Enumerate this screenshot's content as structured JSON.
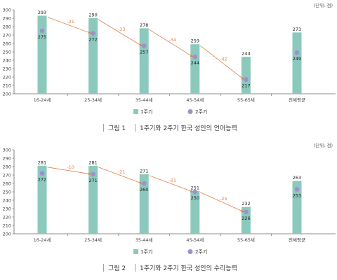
{
  "charts": [
    {
      "caption_number": "그림 1",
      "caption_title": "1주기와 2주기 한국 성인의 언어능력"
    },
    {
      "caption_number": "그림 2",
      "caption_title": "1주기와 2주기 한국 성인의 수리능력"
    }
  ],
  "chart_data": [
    {
      "type": "bar",
      "unit_label": "(단위: 점)",
      "categories": [
        "16-24세",
        "25-34세",
        "35-44세",
        "45-54세",
        "55-65세",
        "전체평균"
      ],
      "series": [
        {
          "name": "1주기",
          "type": "bar",
          "values": [
            293,
            290,
            278,
            259,
            244,
            273
          ],
          "color": "#8cc9bd"
        },
        {
          "name": "2주기",
          "type": "scatter",
          "values": [
            275,
            272,
            257,
            244,
            217,
            249
          ],
          "color": "#9f8fcf"
        }
      ],
      "differences": [
        "-21",
        "-33",
        "-34",
        "-42"
      ],
      "ylim": [
        200,
        300
      ],
      "yticks": [
        200,
        210,
        220,
        230,
        240,
        250,
        260,
        270,
        280,
        290,
        300
      ],
      "grid": false,
      "legend": "bottom-center",
      "arrow_color": "#e0804a"
    },
    {
      "type": "bar",
      "unit_label": "(단위: 점)",
      "categories": [
        "16-24세",
        "25-34세",
        "35-44세",
        "45-54세",
        "55-65세",
        "전체평균"
      ],
      "series": [
        {
          "name": "1주기",
          "type": "bar",
          "values": [
            281,
            281,
            271,
            251,
            232,
            263
          ],
          "color": "#8cc9bd"
        },
        {
          "name": "2주기",
          "type": "scatter",
          "values": [
            272,
            271,
            260,
            250,
            226,
            253
          ],
          "color": "#9f8fcf"
        }
      ],
      "differences": [
        "-10",
        "-21",
        "-21",
        "-25"
      ],
      "ylim": [
        200,
        300
      ],
      "yticks": [
        200,
        210,
        220,
        230,
        240,
        250,
        260,
        270,
        280,
        290,
        300
      ],
      "grid": false,
      "legend": "bottom-center",
      "arrow_color": "#e0804a"
    }
  ]
}
